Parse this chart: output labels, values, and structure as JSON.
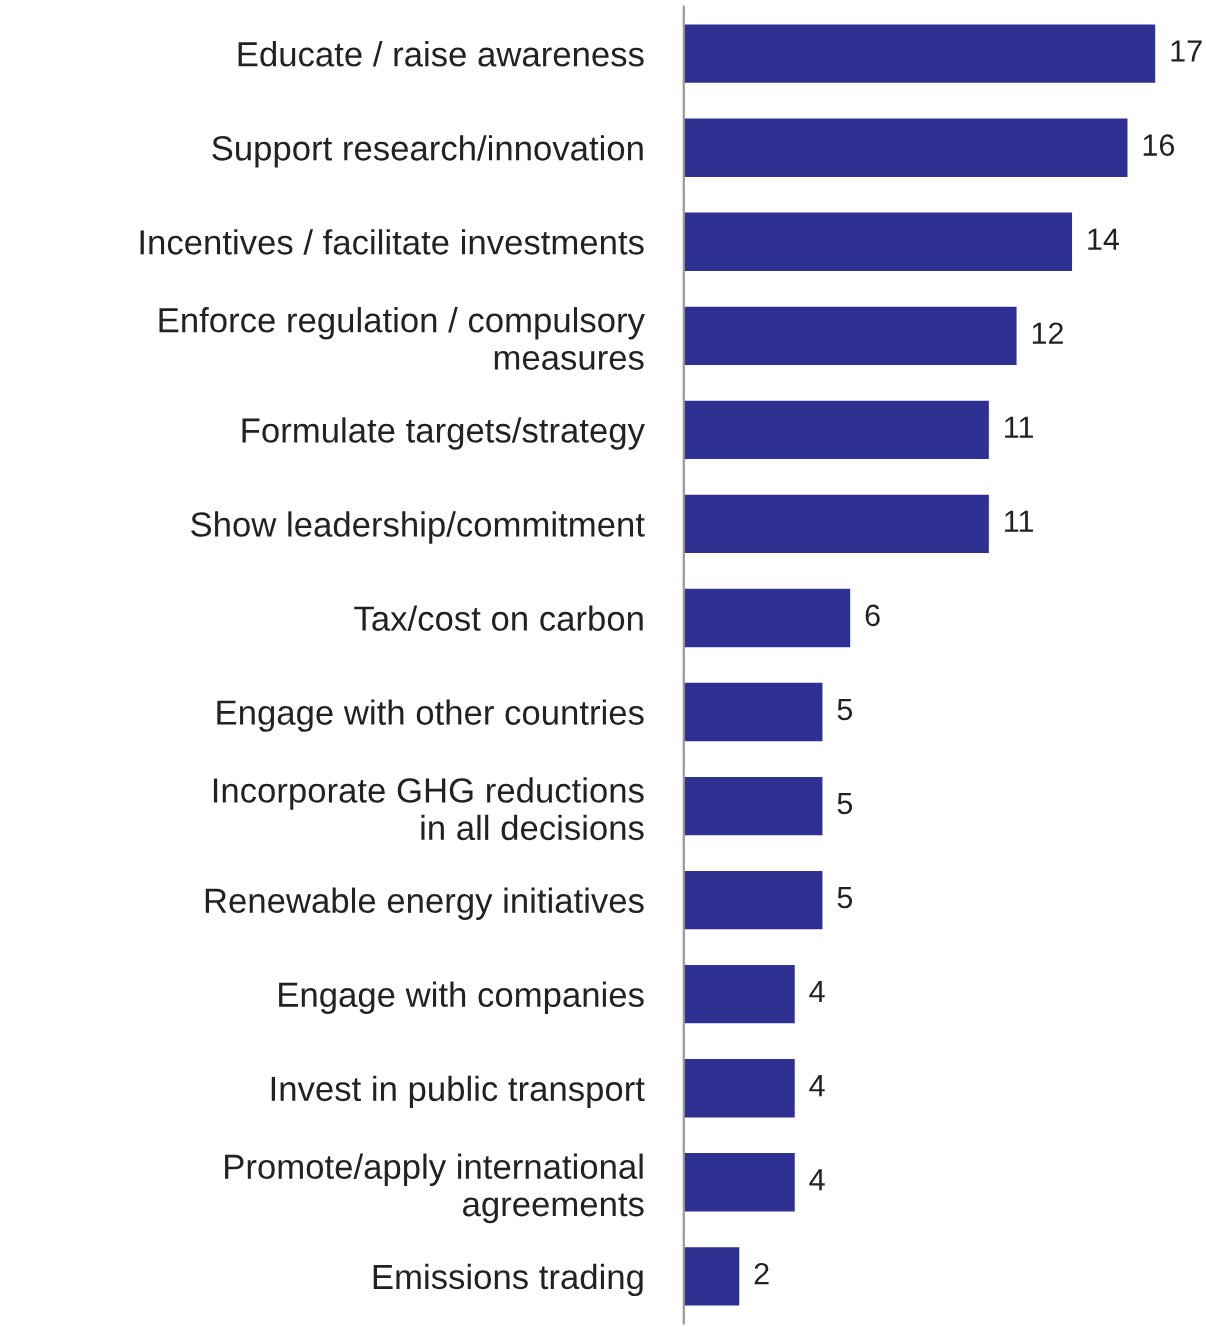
{
  "chart_data": {
    "type": "bar",
    "orientation": "horizontal",
    "categories": [
      "Educate / raise awareness",
      "Support research/innovation",
      "Incentives / facilitate investments",
      "Enforce regulation / compulsory\nmeasures",
      "Formulate targets/strategy",
      "Show leadership/commitment",
      "Tax/cost on carbon",
      "Engage with other countries",
      "Incorporate GHG reductions\nin all decisions",
      "Renewable energy initiatives",
      "Engage with companies",
      "Invest in public transport",
      "Promote/apply international\nagreements",
      "Emissions trading"
    ],
    "values": [
      17,
      16,
      14,
      12,
      11,
      11,
      6,
      5,
      5,
      5,
      4,
      4,
      4,
      2
    ],
    "color": "#2e3192",
    "data_labels": true,
    "grid": false,
    "legend": false
  }
}
